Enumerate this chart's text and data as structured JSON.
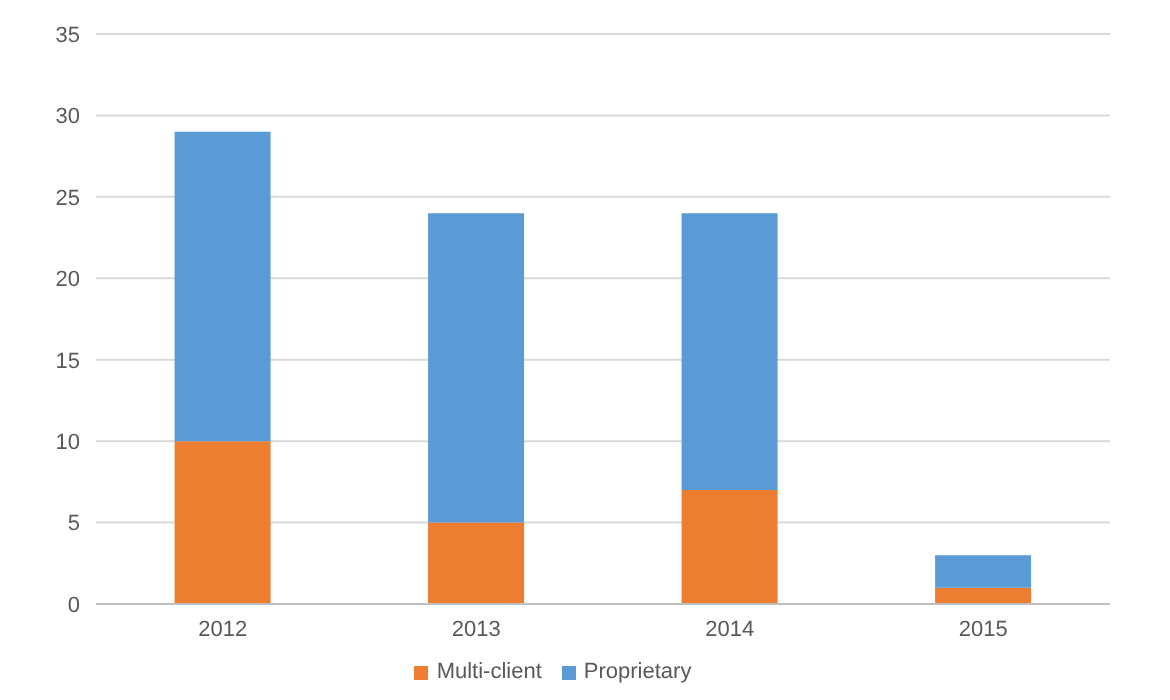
{
  "chart_data": {
    "type": "bar",
    "stacked": true,
    "categories": [
      "2012",
      "2013",
      "2014",
      "2015"
    ],
    "series": [
      {
        "name": "Multi-client",
        "color": "#ed7d31",
        "values": [
          10,
          5,
          7,
          1
        ]
      },
      {
        "name": "Proprietary",
        "color": "#5b9bd5",
        "values": [
          19,
          19,
          17,
          2
        ]
      }
    ],
    "ylim": [
      0,
      35
    ],
    "yticks": [
      0,
      5,
      10,
      15,
      20,
      25,
      30,
      35
    ],
    "grid": "y",
    "legend": "bottom"
  }
}
